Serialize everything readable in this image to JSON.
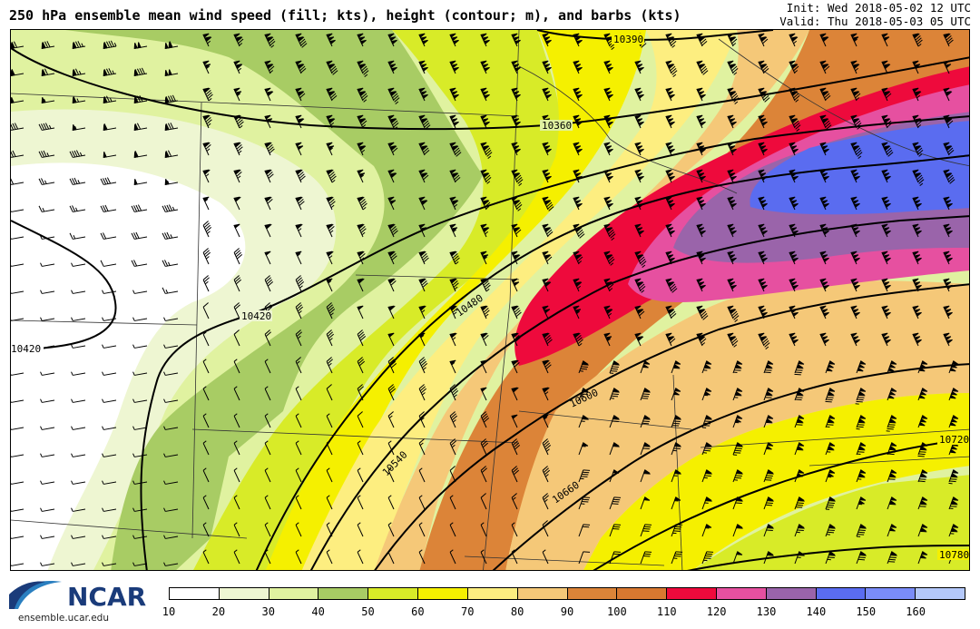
{
  "header": {
    "title": "250 hPa ensemble mean wind speed (fill; kts), height (contour; m), and barbs (kts)",
    "init": "Init: Wed 2018-05-02 12 UTC",
    "valid": "Valid: Thu 2018-05-03 05 UTC"
  },
  "logo": {
    "text": "NCAR",
    "url": "ensemble.ucar.edu"
  },
  "colorbar": {
    "colors": [
      "#ffffff",
      "#eef6d2",
      "#e0f2a0",
      "#a8cc64",
      "#d8eb28",
      "#f5f000",
      "#fdee80",
      "#f5c878",
      "#dc8438",
      "#d87830",
      "#ee0a3c",
      "#e650a0",
      "#9a64aa",
      "#5a6cf0",
      "#7a8cf8",
      "#b4c8fa"
    ],
    "ticks": [
      "10",
      "20",
      "30",
      "40",
      "50",
      "60",
      "70",
      "80",
      "90",
      "100",
      "110",
      "120",
      "130",
      "140",
      "150",
      "160"
    ]
  },
  "contours": [
    {
      "label": "10390"
    },
    {
      "label": "10360"
    },
    {
      "label": "10420"
    },
    {
      "label": "10420"
    },
    {
      "label": "10480"
    },
    {
      "label": "10540"
    },
    {
      "label": "10600"
    },
    {
      "label": "10660"
    },
    {
      "label": "10720"
    },
    {
      "label": "10780"
    }
  ]
}
